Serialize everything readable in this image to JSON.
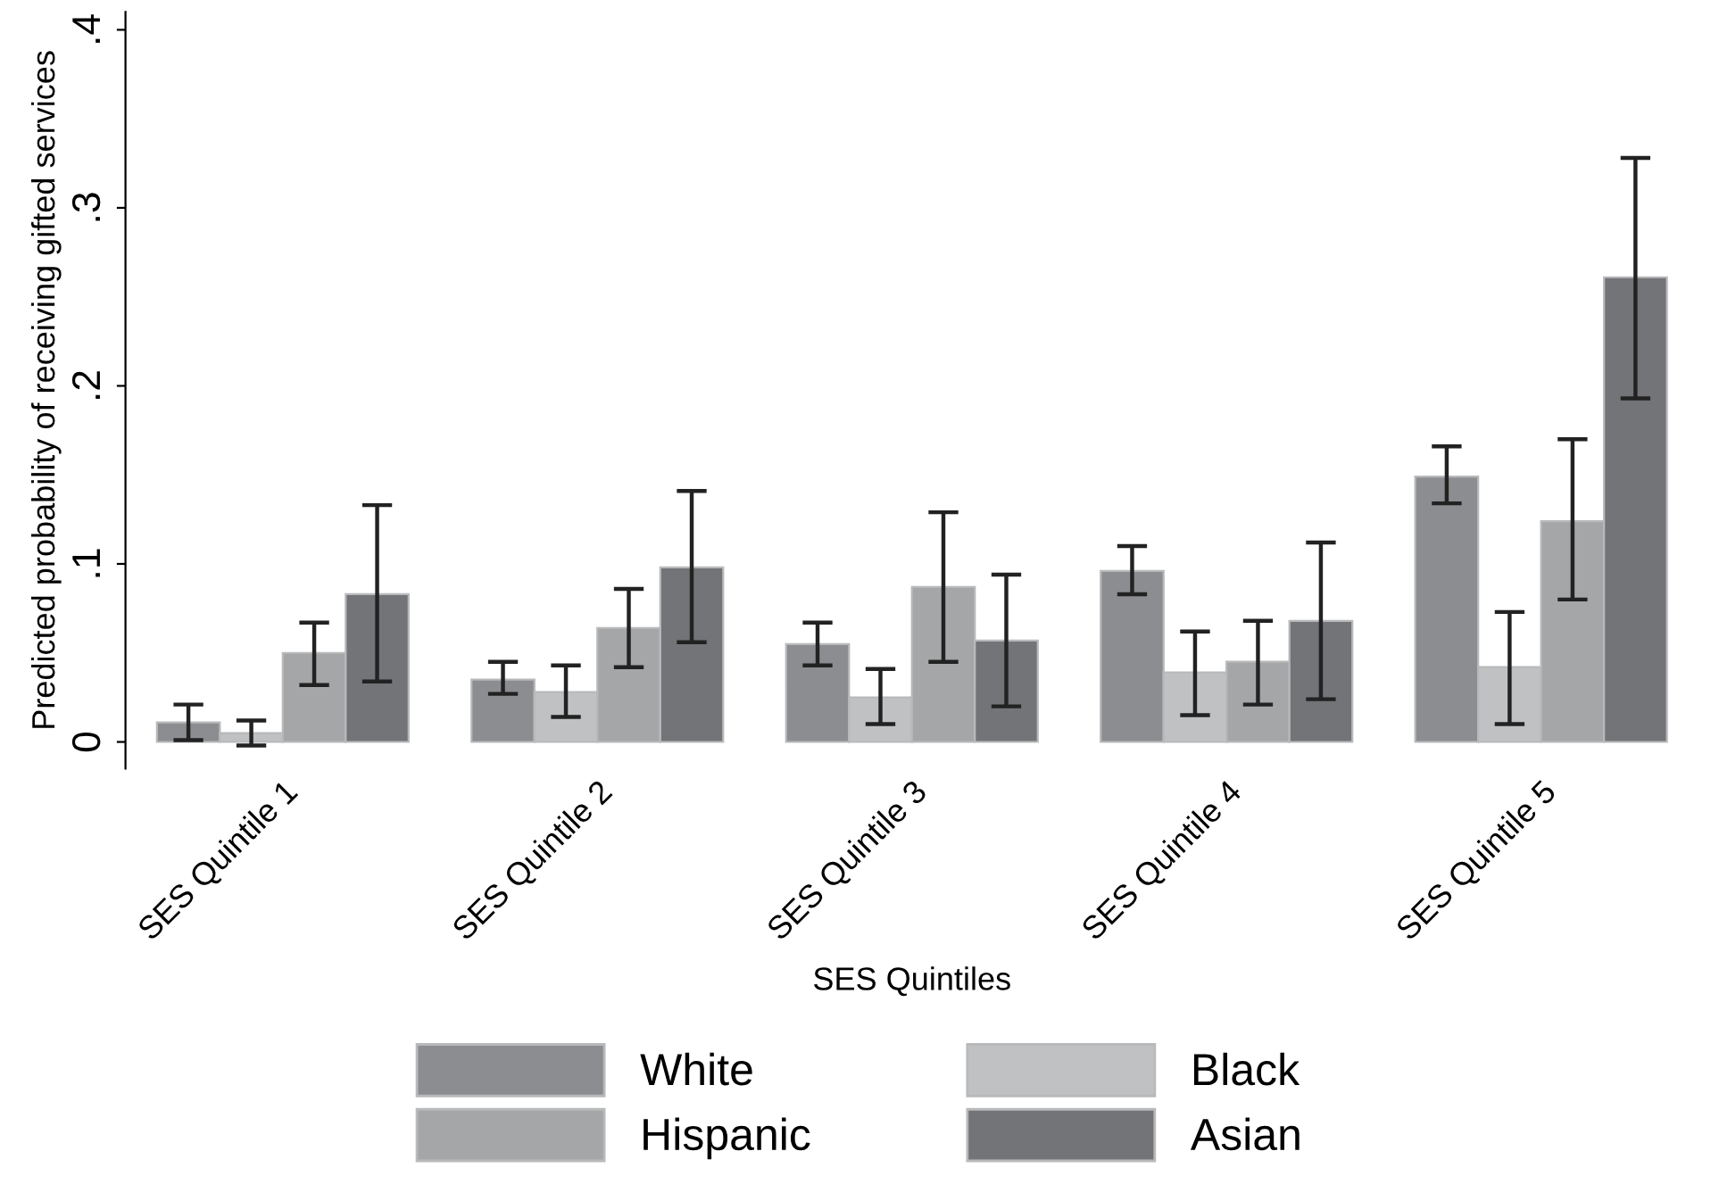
{
  "chart_data": {
    "type": "bar",
    "xlabel": "SES Quintiles",
    "ylabel": "Predicted probability of receiving gifted services",
    "categories": [
      "SES Quintile 1",
      "SES Quintile 2",
      "SES Quintile 3",
      "SES Quintile 4",
      "SES Quintile 5"
    ],
    "series": [
      {
        "name": "White",
        "color": "#8c8d90",
        "values": [
          0.011,
          0.035,
          0.055,
          0.096,
          0.149
        ],
        "errors": [
          [
            0.001,
            0.021
          ],
          [
            0.027,
            0.045
          ],
          [
            0.043,
            0.067
          ],
          [
            0.083,
            0.11
          ],
          [
            0.134,
            0.166
          ]
        ]
      },
      {
        "name": "Black",
        "color": "#c0c1c3",
        "values": [
          0.005,
          0.028,
          0.025,
          0.039,
          0.042
        ],
        "errors": [
          [
            -0.002,
            0.012
          ],
          [
            0.014,
            0.043
          ],
          [
            0.01,
            0.041
          ],
          [
            0.015,
            0.062
          ],
          [
            0.01,
            0.073
          ]
        ]
      },
      {
        "name": "Hispanic",
        "color": "#a5a6a8",
        "values": [
          0.05,
          0.064,
          0.087,
          0.045,
          0.124
        ],
        "errors": [
          [
            0.032,
            0.067
          ],
          [
            0.042,
            0.086
          ],
          [
            0.045,
            0.129
          ],
          [
            0.021,
            0.068
          ],
          [
            0.08,
            0.17
          ]
        ]
      },
      {
        "name": "Asian",
        "color": "#737477",
        "values": [
          0.083,
          0.098,
          0.057,
          0.068,
          0.261
        ],
        "errors": [
          [
            0.034,
            0.133
          ],
          [
            0.056,
            0.141
          ],
          [
            0.02,
            0.094
          ],
          [
            0.024,
            0.112
          ],
          [
            0.193,
            0.328
          ]
        ]
      }
    ],
    "ylim": [
      -0.015,
      0.41
    ],
    "yticks": [
      0,
      {
        "value": 0.1,
        "label": ".1"
      },
      {
        "value": 0.2,
        "label": ".2"
      },
      {
        "value": 0.3,
        "label": ".3"
      },
      {
        "value": 0.4,
        "label": ".4"
      }
    ],
    "grid": false,
    "legend": "bottom"
  }
}
